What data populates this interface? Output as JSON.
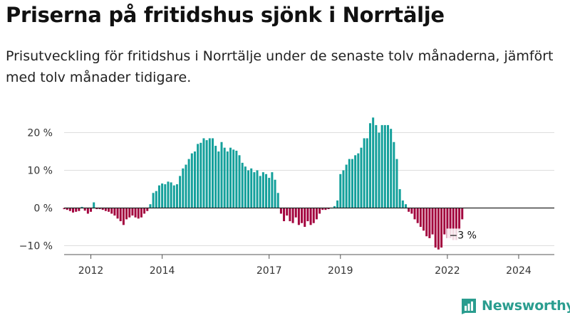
{
  "header": {
    "title": "Priserna på fritidshus sjönk i Norrtälje",
    "subtitle": "Prisutveckling för fritidshus i Norrtälje under de senaste tolv månaderna, jämfört med tolv månader tidigare."
  },
  "brand": {
    "name": "Newsworthy",
    "logo_icon": "bar-chart-logo-icon",
    "color": "#2a9d8f"
  },
  "colors": {
    "positive": "#14a09b",
    "negative": "#a3033e",
    "grid": "#dddddd",
    "zero_line": "#222222"
  },
  "chart_data": {
    "type": "bar",
    "title": "",
    "xlabel": "",
    "ylabel": "",
    "ylim": [
      -12,
      25
    ],
    "y_ticks": [
      20,
      10,
      0,
      -10
    ],
    "y_tick_labels": [
      "20 %",
      "10 %",
      "0 %",
      "−10 %"
    ],
    "x_ticks": [
      2012,
      2014,
      2017,
      2019,
      2022,
      2024
    ],
    "x_range": [
      2011.25,
      2025.0
    ],
    "grid": true,
    "legend": "none",
    "annotation": {
      "label": "−3 %",
      "index": -1
    },
    "start": {
      "year": 2011,
      "month": 4
    },
    "values": [
      -0.3,
      -0.5,
      -0.8,
      -1.2,
      -1.0,
      -0.8,
      0.3,
      -0.7,
      -1.5,
      -1.0,
      1.5,
      -0.3,
      -0.3,
      -0.5,
      -0.8,
      -1.0,
      -1.5,
      -2.0,
      -2.8,
      -3.5,
      -4.5,
      -3.0,
      -2.5,
      -2.0,
      -2.5,
      -2.8,
      -2.5,
      -1.5,
      -0.8,
      1.0,
      4.0,
      4.5,
      6.0,
      6.5,
      6.3,
      7.0,
      6.8,
      6.0,
      6.3,
      8.5,
      10.5,
      11.5,
      13.0,
      14.5,
      15.0,
      17.0,
      17.3,
      18.5,
      18.0,
      18.5,
      18.5,
      16.5,
      15.0,
      17.5,
      16.0,
      15.0,
      16.0,
      15.5,
      15.2,
      14.0,
      12.0,
      11.0,
      10.0,
      10.5,
      9.5,
      10.0,
      8.5,
      9.5,
      9.0,
      8.0,
      9.5,
      7.5,
      4.0,
      -1.5,
      -3.5,
      -2.0,
      -3.5,
      -4.0,
      -2.5,
      -4.5,
      -4.0,
      -5.0,
      -3.5,
      -4.5,
      -4.0,
      -3.0,
      -1.5,
      -0.5,
      -0.5,
      -0.3,
      0.0,
      0.5,
      2.0,
      9.0,
      10.0,
      11.5,
      13.0,
      13.0,
      14.0,
      14.5,
      16.0,
      18.5,
      18.5,
      22.5,
      24.0,
      22.0,
      20.0,
      22.0,
      22.0,
      22.0,
      21.0,
      17.5,
      13.0,
      5.0,
      2.0,
      1.0,
      -1.0,
      -1.5,
      -3.0,
      -4.0,
      -5.0,
      -6.0,
      -7.5,
      -8.0,
      -7.0,
      -10.5,
      -11.0,
      -10.5,
      -7.0,
      -8.0,
      -8.0,
      -8.5,
      -8.5,
      -6.0,
      -3.0
    ]
  }
}
